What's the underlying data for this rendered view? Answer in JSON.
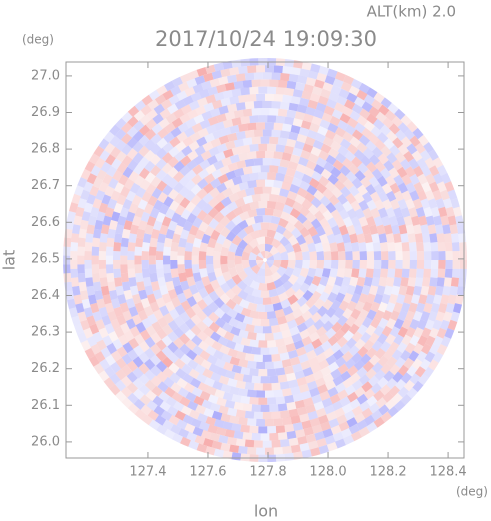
{
  "chart_data": {
    "type": "radar-field",
    "title": "2017/10/24 19:09:30",
    "subtitle": "ALT(km) 2.0",
    "x_label": "lon",
    "y_label": "lat",
    "x_unit": "(deg)",
    "y_unit": "(deg)",
    "xlim": [
      127.127,
      128.453
    ],
    "ylim": [
      25.956,
      27.038
    ],
    "xticks": [
      127.4,
      127.6,
      127.8,
      {
        "value": 128,
        "label": "128.0"
      },
      128.2,
      128.4
    ],
    "yticks": [
      {
        "value": 26,
        "label": "26.0"
      },
      26.1,
      26.2,
      26.3,
      26.4,
      26.5,
      26.6,
      26.7,
      26.8,
      26.9,
      {
        "value": 27,
        "label": "27.0"
      }
    ]
  }
}
